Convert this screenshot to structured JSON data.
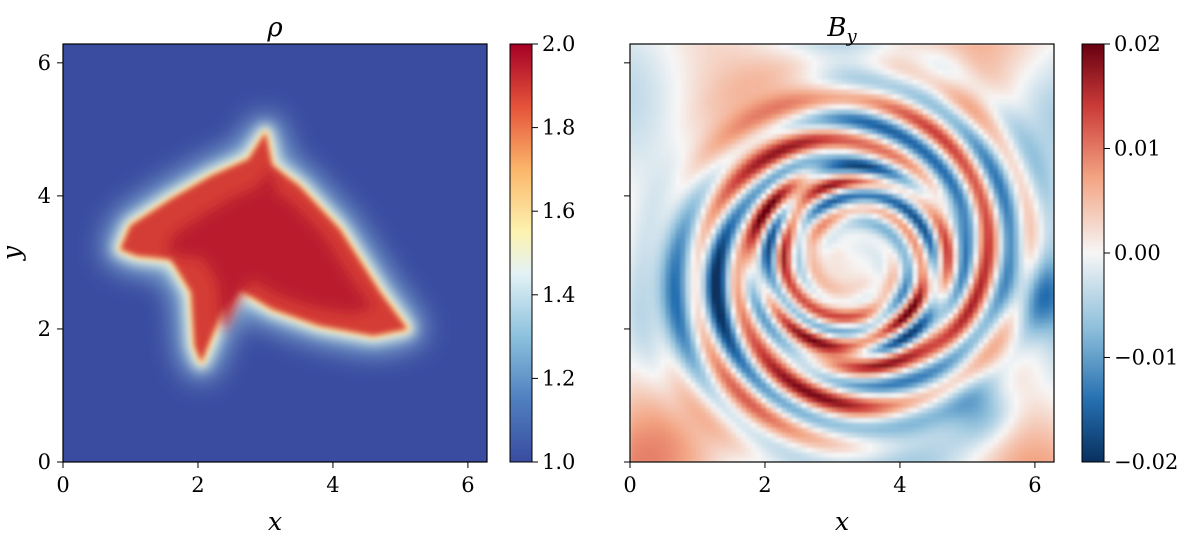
{
  "chart_data": [
    {
      "type": "heatmap",
      "title": "ρ",
      "xlabel": "x",
      "ylabel": "y",
      "xlim": [
        0,
        6.283
      ],
      "ylim": [
        0,
        6.283
      ],
      "xticks": [
        "0",
        "2",
        "4",
        "6"
      ],
      "xtick_values": [
        0,
        2,
        4,
        6
      ],
      "yticks": [
        "0",
        "2",
        "4",
        "6"
      ],
      "ytick_values": [
        0,
        2,
        4,
        6
      ],
      "colormap": "RdYlBu_r",
      "colorbar": {
        "vmin": 1.0,
        "vmax": 2.0,
        "ticks": [
          "1.0",
          "1.2",
          "1.4",
          "1.6",
          "1.8",
          "2.0"
        ],
        "tick_values": [
          1.0,
          1.2,
          1.4,
          1.6,
          1.8,
          2.0
        ]
      },
      "background_value": 1.0,
      "blob_outline": [
        [
          0.85,
          3.2
        ],
        [
          1.0,
          3.55
        ],
        [
          1.6,
          3.95
        ],
        [
          2.2,
          4.3
        ],
        [
          2.75,
          4.55
        ],
        [
          3.0,
          4.95
        ],
        [
          3.1,
          4.45
        ],
        [
          3.5,
          4.15
        ],
        [
          4.1,
          3.5
        ],
        [
          4.7,
          2.55
        ],
        [
          5.1,
          2.0
        ],
        [
          4.6,
          1.9
        ],
        [
          3.8,
          2.05
        ],
        [
          3.1,
          2.3
        ],
        [
          2.6,
          2.6
        ],
        [
          2.35,
          2.25
        ],
        [
          2.05,
          1.5
        ],
        [
          1.95,
          1.75
        ],
        [
          1.9,
          2.55
        ],
        [
          1.6,
          3.05
        ],
        [
          1.1,
          3.1
        ]
      ],
      "blob_value": 1.95
    },
    {
      "type": "heatmap",
      "title": "B_y",
      "title_main": "B",
      "title_sub": "y",
      "xlabel": "x",
      "ylabel": "",
      "xlim": [
        0,
        6.283
      ],
      "ylim": [
        0,
        6.283
      ],
      "xticks": [
        "0",
        "2",
        "4",
        "6"
      ],
      "xtick_values": [
        0,
        2,
        4,
        6
      ],
      "yticks": [],
      "ytick_values": [
        0,
        2,
        4,
        6
      ],
      "colormap": "RdBu_r",
      "colorbar": {
        "vmin": -0.02,
        "vmax": 0.02,
        "ticks": [
          "−0.02",
          "−0.01",
          "0.00",
          "0.01",
          "0.02"
        ],
        "tick_values": [
          -0.02,
          -0.01,
          0.0,
          0.01,
          0.02
        ]
      },
      "field_description_values": {
        "range": [
          -0.02,
          0.02
        ]
      }
    }
  ]
}
